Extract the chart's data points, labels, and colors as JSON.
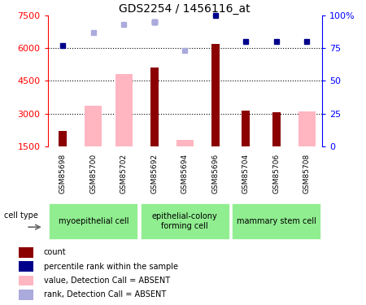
{
  "title": "GDS2254 / 1456116_at",
  "samples": [
    "GSM85698",
    "GSM85700",
    "GSM85702",
    "GSM85692",
    "GSM85694",
    "GSM85696",
    "GSM85704",
    "GSM85706",
    "GSM85708"
  ],
  "count_values": [
    2200,
    null,
    null,
    5100,
    null,
    6200,
    3150,
    3050,
    null
  ],
  "absent_value": [
    null,
    3350,
    4800,
    null,
    1800,
    null,
    null,
    null,
    3100
  ],
  "rank_present_y": [
    6100,
    null,
    null,
    7200,
    null,
    7500,
    6300,
    6300,
    6300
  ],
  "rank_absent_y": [
    null,
    6700,
    7100,
    7200,
    5900,
    null,
    null,
    null,
    null
  ],
  "ylim_left": [
    1500,
    7500
  ],
  "ylim_right": [
    0,
    100
  ],
  "yticks_left": [
    1500,
    3000,
    4500,
    6000,
    7500
  ],
  "yticks_right": [
    0,
    25,
    50,
    75,
    100
  ],
  "hlines": [
    3000,
    4500,
    6000
  ],
  "count_color": "#8B0000",
  "absent_bar_color": "#FFB6C1",
  "rank_present_color": "#00008B",
  "rank_absent_color": "#AAAADD",
  "plot_bg": "#FFFFFF",
  "gray_bg": "#C8C8C8",
  "green_bg": "#90EE90",
  "cell_groups": [
    {
      "label": "myoepithelial cell",
      "start": 0,
      "end": 3
    },
    {
      "label": "epithelial-colony\nforming cell",
      "start": 3,
      "end": 6
    },
    {
      "label": "mammary stem cell",
      "start": 6,
      "end": 9
    }
  ],
  "legend_items": [
    {
      "color": "#8B0000",
      "label": "count",
      "style": "square"
    },
    {
      "color": "#00008B",
      "label": "percentile rank within the sample",
      "style": "square"
    },
    {
      "color": "#FFB6C1",
      "label": "value, Detection Call = ABSENT",
      "style": "square"
    },
    {
      "color": "#AAAADD",
      "label": "rank, Detection Call = ABSENT",
      "style": "square"
    }
  ]
}
